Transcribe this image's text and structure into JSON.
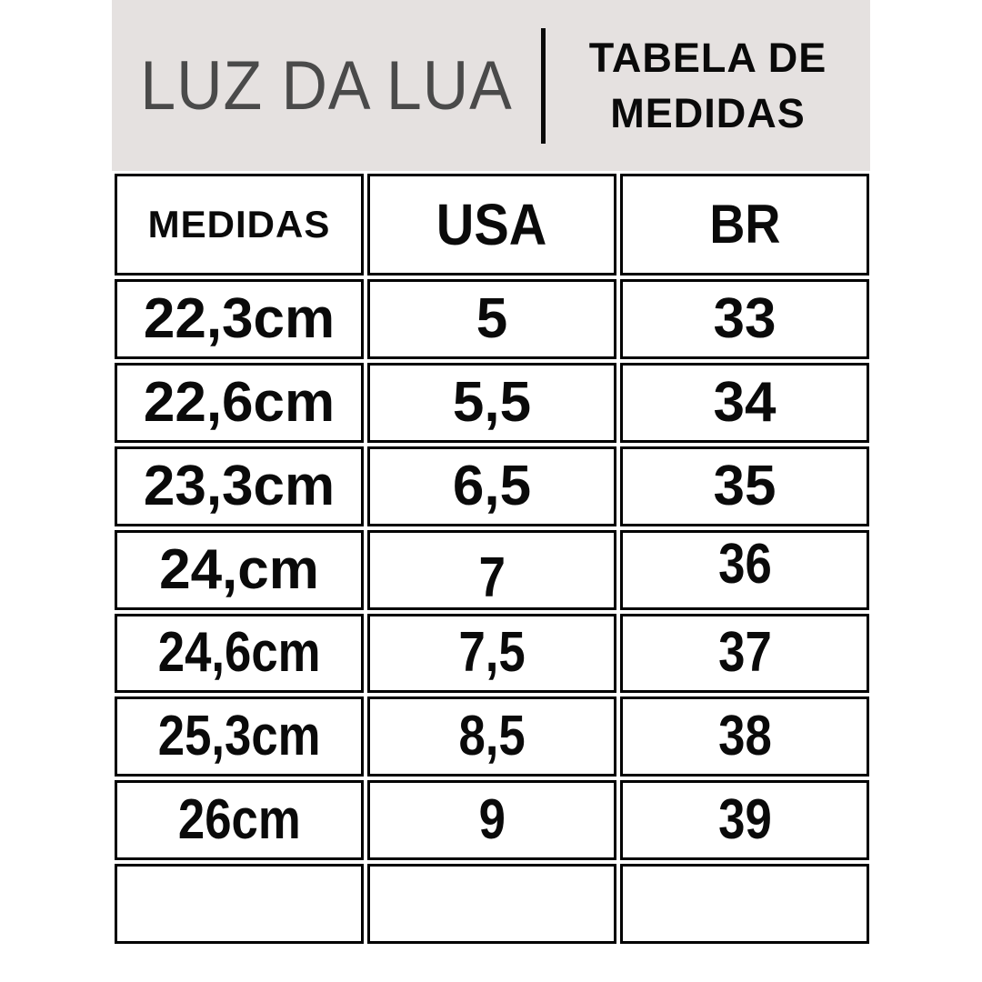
{
  "colors": {
    "band_bg": "#e5e1e0",
    "brand_text": "#4a4a4a",
    "ink": "#0a0a0a"
  },
  "header": {
    "brand": "LUZ DA LUA",
    "title_line1": "TABELA DE",
    "title_line2": "MEDIDAS"
  },
  "table": {
    "columns": [
      "MEDIDAS",
      "USA",
      "BR"
    ],
    "rows": [
      [
        "22,3cm",
        "5",
        "33"
      ],
      [
        "22,6cm",
        "5,5",
        "34"
      ],
      [
        "23,3cm",
        "6,5",
        "35"
      ],
      [
        "24,cm",
        "7",
        "36"
      ],
      [
        "24,6cm",
        "7,5",
        "37"
      ],
      [
        "25,3cm",
        "8,5",
        "38"
      ],
      [
        "26cm",
        "9",
        "39"
      ]
    ]
  },
  "chart_data": {
    "type": "table",
    "title": "TABELA DE MEDIDAS",
    "brand": "LUZ DA LUA",
    "columns": [
      "MEDIDAS",
      "USA",
      "BR"
    ],
    "rows": [
      [
        "22,3cm",
        "5",
        "33"
      ],
      [
        "22,6cm",
        "5,5",
        "34"
      ],
      [
        "23,3cm",
        "6,5",
        "35"
      ],
      [
        "24,cm",
        "7",
        "36"
      ],
      [
        "24,6cm",
        "7,5",
        "37"
      ],
      [
        "25,3cm",
        "8,5",
        "38"
      ],
      [
        "26cm",
        "9",
        "39"
      ]
    ],
    "layout": "1 header row, 7 data rows, 1 empty trailing row; black-bordered cells on white"
  }
}
